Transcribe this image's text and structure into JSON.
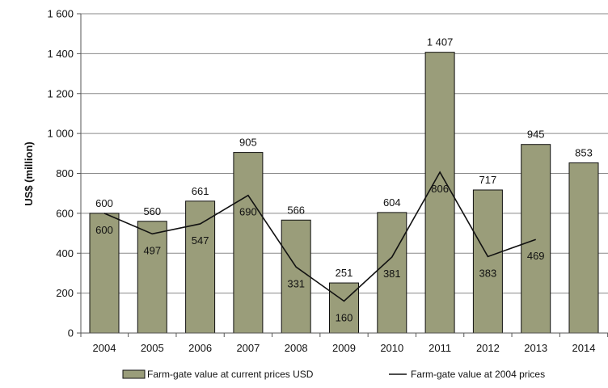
{
  "chart_data": {
    "type": "bar",
    "title": "",
    "xlabel": "",
    "ylabel": "US$ (million)",
    "ylim": [
      0,
      1600
    ],
    "yticks": [
      0,
      200,
      400,
      600,
      800,
      1000,
      1200,
      1400,
      1600
    ],
    "ytick_labels": [
      "0",
      "200",
      "400",
      "600",
      "800",
      "1 000",
      "1 200",
      "1 400",
      "1 600"
    ],
    "grid": true,
    "categories": [
      "2004",
      "2005",
      "2006",
      "2007",
      "2008",
      "2009",
      "2010",
      "2011",
      "2012",
      "2013",
      "2014"
    ],
    "series": [
      {
        "name": "Farm-gate value at current prices USD",
        "type": "bar",
        "color": "#9a9d7a",
        "values": [
          600,
          560,
          661,
          905,
          566,
          251,
          604,
          1407,
          717,
          945,
          853
        ],
        "labels": [
          "600",
          "560",
          "661",
          "905",
          "566",
          "251",
          "604",
          "1 407",
          "717",
          "945",
          "853"
        ]
      },
      {
        "name": "Farm-gate value at 2004 prices",
        "type": "line",
        "color": "#111111",
        "values": [
          600,
          497,
          547,
          690,
          331,
          160,
          381,
          806,
          383,
          469,
          null
        ],
        "labels": [
          "600",
          "497",
          "547",
          "690",
          "331",
          "160",
          "381",
          "806",
          "383",
          "469",
          null
        ]
      }
    ],
    "legend": "bottom"
  }
}
